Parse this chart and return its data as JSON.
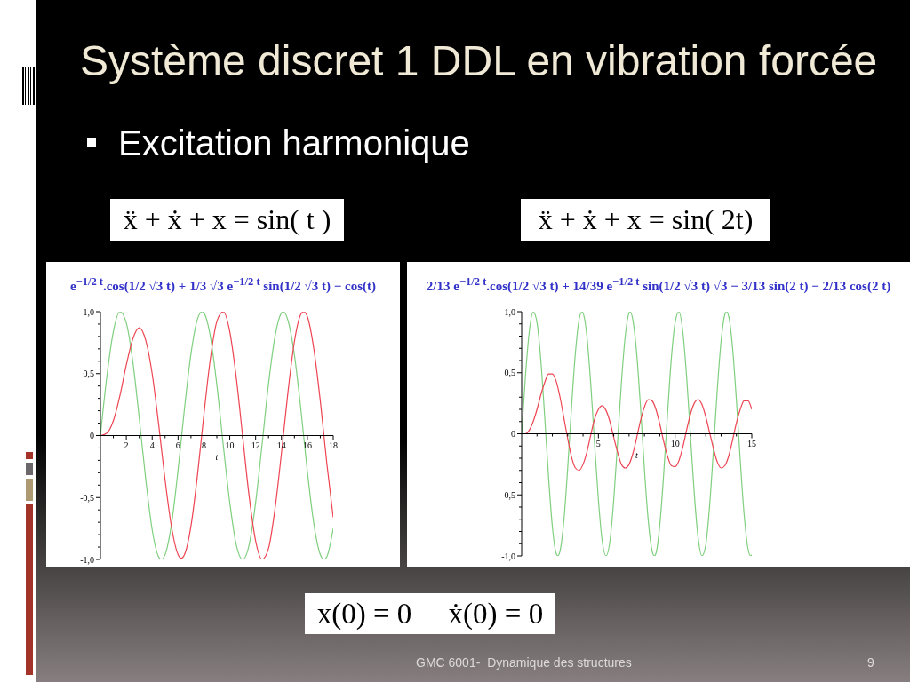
{
  "chart_data": [
    {
      "type": "line",
      "title": "e$^{−1/2 t}$.cos(1/2 √3 t) + 1/3 √3 e$^{−1/2 t}$ sin(1/2 √3 t) − cos(t)",
      "subtitle": "ẍ + ẋ + x = sin( t )",
      "xlabel": "t",
      "annotations": [
        "Système discret 1 DDL en vibration forcée",
        "Excitation harmonique",
        "x(0) = 0     ẋ(0) = 0",
        "GMC 6001-  Dynamique des structures",
        "9"
      ],
      "series": [
        {
          "color": "#7fcf7f",
          "x": [
            0,
            0.5,
            1,
            1.5,
            2,
            2.5,
            3,
            3.5,
            4,
            4.5,
            4.71,
            5,
            5.5,
            6,
            6.5,
            7,
            7.5,
            7.85,
            8,
            8.5,
            9,
            9.5,
            10,
            10.5,
            11,
            11.5,
            12,
            12.5,
            13,
            13.5,
            14,
            14.14,
            14.5,
            15,
            15.5,
            16,
            16.5,
            17,
            17.28,
            17.5,
            18
          ],
          "values": [
            0,
            0.48,
            0.84,
            1.0,
            0.91,
            0.6,
            0.14,
            -0.35,
            -0.76,
            -0.98,
            -1,
            -0.96,
            -0.71,
            -0.28,
            0.22,
            0.66,
            0.94,
            1,
            0.99,
            0.8,
            0.41,
            -0.08,
            -0.54,
            -0.88,
            -1.0,
            -0.88,
            -0.54,
            -0.07,
            0.42,
            0.8,
            0.99,
            1,
            0.93,
            0.65,
            0.21,
            -0.29,
            -0.71,
            -0.96,
            -1,
            -0.98,
            -0.75
          ]
        },
        {
          "color": "#ee4452",
          "x": [
            0,
            0.5,
            1,
            1.5,
            2,
            2.5,
            3,
            3.5,
            4,
            4.5,
            5,
            5.5,
            6,
            6.25,
            6.5,
            7,
            7.5,
            8,
            8.5,
            9,
            9.5,
            10,
            10.5,
            11,
            11.5,
            12,
            12.5,
            13,
            13.5,
            14,
            14.5,
            15,
            15.5,
            15.71,
            16,
            16.5,
            17,
            17.5,
            18
          ],
          "values": [
            0,
            0.02,
            0.12,
            0.32,
            0.57,
            0.78,
            0.87,
            0.77,
            0.5,
            0.09,
            -0.36,
            -0.74,
            -0.96,
            -0.99,
            -0.96,
            -0.73,
            -0.32,
            0.17,
            0.62,
            0.92,
            1.0,
            0.84,
            0.47,
            -0.01,
            -0.49,
            -0.85,
            -1.0,
            -0.91,
            -0.59,
            -0.14,
            0.35,
            0.76,
            0.98,
            1.0,
            0.96,
            0.7,
            0.28,
            -0.22,
            -0.66
          ]
        }
      ],
      "xlim": [
        0,
        18
      ],
      "xticks": [
        {
          "value": 1,
          "label": null
        },
        2,
        {
          "value": 3,
          "label": null
        },
        4,
        {
          "value": 5,
          "label": null
        },
        6,
        {
          "value": 7,
          "label": null
        },
        8,
        {
          "value": 9,
          "label": null
        },
        10,
        {
          "value": 11,
          "label": null
        },
        12,
        {
          "value": 13,
          "label": null
        },
        14,
        {
          "value": 15,
          "label": null
        },
        16,
        {
          "value": 17,
          "label": null
        },
        18
      ],
      "ylim": [
        -1,
        1
      ],
      "yticks": [
        {
          "value": -1,
          "label": "-1,0"
        },
        {
          "value": -0.9,
          "label": null
        },
        {
          "value": -0.8,
          "label": null
        },
        {
          "value": -0.7,
          "label": null
        },
        {
          "value": -0.6,
          "label": null
        },
        {
          "value": -0.5,
          "label": "-0,5"
        },
        {
          "value": -0.4,
          "label": null
        },
        {
          "value": -0.3,
          "label": null
        },
        {
          "value": -0.2,
          "label": null
        },
        {
          "value": -0.1,
          "label": null
        },
        0,
        {
          "value": 0.1,
          "label": null
        },
        {
          "value": 0.2,
          "label": null
        },
        {
          "value": 0.3,
          "label": null
        },
        {
          "value": 0.4,
          "label": null
        },
        {
          "value": 0.5,
          "label": "0,5"
        },
        {
          "value": 0.6,
          "label": null
        },
        {
          "value": 0.7,
          "label": null
        },
        {
          "value": 0.8,
          "label": null
        },
        {
          "value": 0.9,
          "label": null
        },
        {
          "value": 1,
          "label": "1,0"
        }
      ],
      "marker": "none",
      "line_style": "solid"
    },
    {
      "type": "line",
      "title": "2/13 e$^{−1/2 t}$.cos(1/2 √3 t) + 14/39 e$^{−1/2 t}$ sin(1/2 √3 t) √3 − 3/13 sin(2 t) − 2/13 cos(2 t)",
      "subtitle": "ẍ + ẋ + x = sin( 2t)",
      "xlabel": "t",
      "series": [
        {
          "color": "#7fcf7f",
          "x": [
            0,
            0.25,
            0.5,
            0.75,
            1,
            1.25,
            1.5,
            1.75,
            2,
            2.25,
            2.36,
            2.5,
            2.75,
            3,
            3.25,
            3.5,
            3.75,
            3.93,
            4,
            4.25,
            4.5,
            4.75,
            5,
            5.25,
            5.5,
            5.75,
            6,
            6.25,
            6.5,
            6.75,
            7,
            7.07,
            7.25,
            7.5,
            7.75,
            8,
            8.25,
            8.5,
            8.64,
            8.75,
            9,
            9.25,
            9.5,
            9.75,
            10,
            10.25,
            10.5,
            10.75,
            11,
            11.25,
            11.5,
            11.75,
            12,
            12.25,
            12.5,
            12.75,
            13,
            13.25,
            13.35,
            13.5,
            13.75,
            14,
            14.25,
            14.5,
            14.75,
            14.92,
            15
          ],
          "values": [
            0,
            0.48,
            0.84,
            1.0,
            0.91,
            0.6,
            0.14,
            -0.35,
            -0.76,
            -0.98,
            -1,
            -0.96,
            -0.71,
            -0.28,
            0.22,
            0.66,
            0.94,
            1,
            0.99,
            0.8,
            0.41,
            -0.08,
            -0.54,
            -0.88,
            -1.0,
            -0.88,
            -0.54,
            -0.07,
            0.42,
            0.8,
            0.99,
            1,
            0.93,
            0.65,
            0.21,
            -0.29,
            -0.71,
            -0.96,
            -1,
            -0.98,
            -0.75,
            -0.34,
            0.15,
            0.61,
            0.91,
            1.0,
            0.84,
            0.47,
            -0.01,
            -0.49,
            -0.85,
            -1.0,
            -0.91,
            -0.59,
            -0.13,
            0.36,
            0.76,
            0.98,
            1,
            0.96,
            0.7,
            0.27,
            -0.22,
            -0.66,
            -0.94,
            -1,
            -0.99
          ]
        },
        {
          "color": "#ee4452",
          "x": [
            0,
            0.25,
            0.5,
            0.75,
            1,
            1.25,
            1.5,
            1.75,
            2,
            2.25,
            2.5,
            2.75,
            3,
            3.25,
            3.5,
            3.75,
            4,
            4.25,
            4.5,
            4.75,
            5,
            5.25,
            5.5,
            5.75,
            6,
            6.25,
            6.5,
            6.75,
            7,
            7.25,
            7.5,
            7.75,
            8,
            8.25,
            8.5,
            8.75,
            9,
            9.25,
            9.5,
            9.75,
            10,
            10.25,
            10.5,
            10.75,
            11,
            11.25,
            11.5,
            11.75,
            12,
            12.25,
            12.5,
            12.75,
            13,
            13.25,
            13.5,
            13.75,
            14,
            14.25,
            14.5,
            14.75,
            15
          ],
          "values": [
            0,
            0,
            0.03,
            0.1,
            0.2,
            0.32,
            0.42,
            0.49,
            0.49,
            0.43,
            0.3,
            0.13,
            -0.04,
            -0.19,
            -0.28,
            -0.3,
            -0.25,
            -0.15,
            -0.01,
            0.12,
            0.2,
            0.23,
            0.19,
            0.1,
            -0.03,
            -0.15,
            -0.25,
            -0.28,
            -0.25,
            -0.16,
            -0.03,
            0.11,
            0.22,
            0.28,
            0.27,
            0.2,
            0.08,
            -0.06,
            -0.18,
            -0.26,
            -0.27,
            -0.22,
            -0.11,
            0.03,
            0.16,
            0.25,
            0.28,
            0.24,
            0.14,
            0.01,
            -0.12,
            -0.23,
            -0.28,
            -0.26,
            -0.18,
            -0.05,
            0.09,
            0.2,
            0.27,
            0.27,
            0.2
          ]
        }
      ],
      "xlim": [
        0,
        15
      ],
      "xticks": [
        {
          "value": 1,
          "label": null
        },
        {
          "value": 2,
          "label": null
        },
        {
          "value": 3,
          "label": null
        },
        {
          "value": 4,
          "label": null
        },
        5,
        {
          "value": 6,
          "label": null
        },
        {
          "value": 7,
          "label": null
        },
        {
          "value": 8,
          "label": null
        },
        {
          "value": 9,
          "label": null
        },
        10,
        {
          "value": 11,
          "label": null
        },
        {
          "value": 12,
          "label": null
        },
        {
          "value": 13,
          "label": null
        },
        {
          "value": 14,
          "label": null
        },
        15
      ],
      "ylim": [
        -1,
        1
      ],
      "yticks": [
        {
          "value": -1,
          "label": "-1,0"
        },
        {
          "value": -0.9,
          "label": null
        },
        {
          "value": -0.8,
          "label": null
        },
        {
          "value": -0.7,
          "label": null
        },
        {
          "value": -0.6,
          "label": null
        },
        {
          "value": -0.5,
          "label": "-0,5"
        },
        {
          "value": -0.4,
          "label": null
        },
        {
          "value": -0.3,
          "label": null
        },
        {
          "value": -0.2,
          "label": null
        },
        {
          "value": -0.1,
          "label": null
        },
        0,
        {
          "value": 0.1,
          "label": null
        },
        {
          "value": 0.2,
          "label": null
        },
        {
          "value": 0.3,
          "label": null
        },
        {
          "value": 0.4,
          "label": null
        },
        {
          "value": 0.5,
          "label": "0,5"
        },
        {
          "value": 0.6,
          "label": null
        },
        {
          "value": 0.7,
          "label": null
        },
        {
          "value": 0.8,
          "label": null
        },
        {
          "value": 0.9,
          "label": null
        },
        {
          "value": 1,
          "label": "1,0"
        }
      ],
      "marker": "none",
      "line_style": "solid"
    }
  ]
}
